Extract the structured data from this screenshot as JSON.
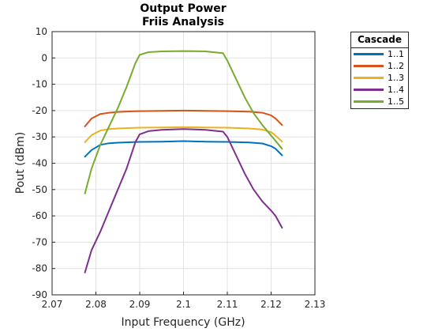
{
  "chart_data": {
    "type": "line",
    "title": "Output Power",
    "subtitle": "Friis Analysis",
    "xlabel": "Input Frequency (GHz)",
    "ylabel": "Pout (dBm)",
    "xlim": [
      2.07,
      2.13
    ],
    "ylim": [
      -90,
      10
    ],
    "xticks": [
      "2.07",
      "2.08",
      "2.09",
      "2.1",
      "2.11",
      "2.12",
      "2.13"
    ],
    "yticks": [
      "-90",
      "-80",
      "-70",
      "-60",
      "-50",
      "-40",
      "-30",
      "-20",
      "-10",
      "0",
      "10"
    ],
    "grid": true,
    "legend": {
      "title": "Cascade",
      "placement": "outside-top-right"
    },
    "series": [
      {
        "name": "1..1",
        "color": "#0072BD",
        "x": [
          2.0775,
          2.079,
          2.081,
          2.083,
          2.085,
          2.088,
          2.09,
          2.095,
          2.1,
          2.105,
          2.11,
          2.115,
          2.118,
          2.12,
          2.121,
          2.1225
        ],
        "y": [
          -37.5,
          -35,
          -33,
          -32.4,
          -32.2,
          -32,
          -31.9,
          -31.8,
          -31.6,
          -31.8,
          -31.9,
          -32.1,
          -32.5,
          -33.5,
          -34.5,
          -37
        ]
      },
      {
        "name": "1..2",
        "color": "#D95319",
        "x": [
          2.0775,
          2.079,
          2.081,
          2.083,
          2.085,
          2.088,
          2.09,
          2.095,
          2.1,
          2.105,
          2.11,
          2.115,
          2.118,
          2.12,
          2.121,
          2.1225
        ],
        "y": [
          -26,
          -23,
          -21.3,
          -20.8,
          -20.5,
          -20.3,
          -20.2,
          -20.1,
          -20,
          -20.1,
          -20.2,
          -20.4,
          -20.8,
          -21.8,
          -23,
          -25.5
        ]
      },
      {
        "name": "1..3",
        "color": "#EDB120",
        "x": [
          2.0775,
          2.079,
          2.081,
          2.083,
          2.085,
          2.088,
          2.09,
          2.095,
          2.1,
          2.105,
          2.11,
          2.115,
          2.118,
          2.12,
          2.121,
          2.1225
        ],
        "y": [
          -32,
          -29.3,
          -27.6,
          -27,
          -26.8,
          -26.6,
          -26.5,
          -26.4,
          -26.3,
          -26.4,
          -26.5,
          -26.8,
          -27.2,
          -28.2,
          -29.5,
          -31.8
        ]
      },
      {
        "name": "1..4",
        "color": "#7E2F8E",
        "x": [
          2.0775,
          2.079,
          2.081,
          2.083,
          2.085,
          2.087,
          2.089,
          2.09,
          2.092,
          2.095,
          2.1,
          2.105,
          2.109,
          2.11,
          2.112,
          2.114,
          2.116,
          2.118,
          2.12,
          2.121,
          2.1225
        ],
        "y": [
          -81.5,
          -73,
          -66,
          -58,
          -50,
          -42,
          -32,
          -29,
          -27.8,
          -27.3,
          -27,
          -27.3,
          -28,
          -30,
          -37,
          -44,
          -50,
          -54.5,
          -58,
          -60,
          -64.5
        ]
      },
      {
        "name": "1..5",
        "color": "#77AC30",
        "x": [
          2.0775,
          2.079,
          2.081,
          2.083,
          2.085,
          2.087,
          2.089,
          2.09,
          2.092,
          2.095,
          2.1,
          2.105,
          2.109,
          2.11,
          2.112,
          2.114,
          2.116,
          2.118,
          2.12,
          2.121,
          2.1225
        ],
        "y": [
          -51.5,
          -42,
          -33,
          -26,
          -19,
          -11,
          -2,
          1.2,
          2.2,
          2.5,
          2.6,
          2.5,
          1.8,
          -1,
          -8,
          -15,
          -21,
          -25.5,
          -29.5,
          -31.5,
          -34.5
        ]
      }
    ]
  }
}
